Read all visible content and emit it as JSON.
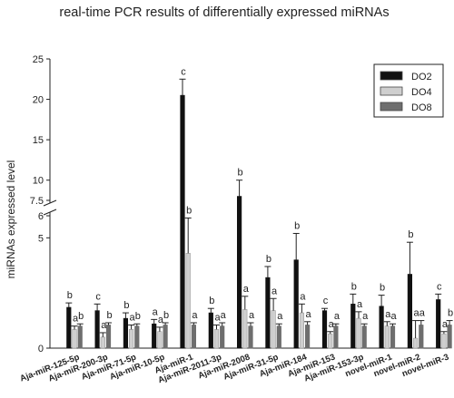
{
  "chart_data": {
    "type": "bar",
    "title": "real-time PCR results of differentially expressed miRNAs",
    "xlabel": "",
    "ylabel": "miRNAs expressed level",
    "y_axis_break": {
      "lower_segment": [
        0,
        6
      ],
      "upper_segment": [
        7.5,
        25
      ]
    },
    "yticks_lower": [
      0,
      5
    ],
    "yticks_lower_labels": [
      "0",
      "5"
    ],
    "yticks_upper": [
      6,
      7.5,
      10,
      15,
      20,
      25
    ],
    "yticks_upper_labels": [
      "6",
      "7.5",
      "10",
      "15",
      "20",
      "25"
    ],
    "legend_position": "top-right",
    "grid": false,
    "categories": [
      "Aja-miR-125-5p",
      "Aja-miR-200-3p",
      "Aja-miR-71-5p",
      "Aja-miR-10-5p",
      "Aja-miR-1",
      "Aja-miR-2011-3p",
      "Aja-miR-2008",
      "Aja-miR-31-5p",
      "Aja-miR-184",
      "Aja-miR-153",
      "Aja-miR-153-3p",
      "novel-miR-1",
      "novel-miR-2",
      "novel-miR-3"
    ],
    "series": [
      {
        "name": "DO2",
        "color": "#111111",
        "values": [
          1.85,
          1.7,
          1.35,
          1.1,
          20.5,
          1.6,
          8.0,
          3.2,
          4.0,
          1.7,
          2.0,
          1.9,
          3.35,
          2.2
        ],
        "errors": [
          0.2,
          0.3,
          0.25,
          0.2,
          2.0,
          0.2,
          2.0,
          0.5,
          1.2,
          0.1,
          0.45,
          0.5,
          1.45,
          0.25
        ],
        "letters": [
          "b",
          "c",
          "b",
          "a",
          "c",
          "b",
          "b",
          "b",
          "b",
          "c",
          "b",
          "b",
          "b",
          "c"
        ]
      },
      {
        "name": "DO4",
        "color": "#cfcfcf",
        "values": [
          0.85,
          0.5,
          0.85,
          0.75,
          4.3,
          0.85,
          1.75,
          1.7,
          1.6,
          0.65,
          1.35,
          1.0,
          0.45,
          0.65
        ],
        "errors": [
          0.15,
          0.2,
          0.2,
          0.2,
          1.6,
          0.2,
          0.6,
          0.55,
          0.4,
          0.1,
          0.3,
          0.2,
          0.8,
          0.1
        ],
        "letters": [
          "a",
          "a",
          "a",
          "a",
          "b",
          "a",
          "a",
          "a",
          "a",
          "a",
          "a",
          "a",
          "a",
          "a"
        ]
      },
      {
        "name": "DO8",
        "color": "#6e6e6e",
        "values": [
          1.0,
          1.05,
          1.0,
          1.05,
          1.05,
          1.0,
          1.0,
          1.0,
          1.05,
          1.0,
          1.0,
          1.0,
          1.05,
          1.05
        ],
        "errors": [
          0.1,
          0.1,
          0.1,
          0.1,
          0.1,
          0.15,
          0.15,
          0.1,
          0.15,
          0.1,
          0.1,
          0.1,
          0.2,
          0.2
        ],
        "letters": [
          "b",
          "b",
          "b",
          "b",
          "a",
          "a",
          "a",
          "a",
          "a",
          "a",
          "a",
          "a",
          "a",
          "b"
        ]
      }
    ]
  }
}
